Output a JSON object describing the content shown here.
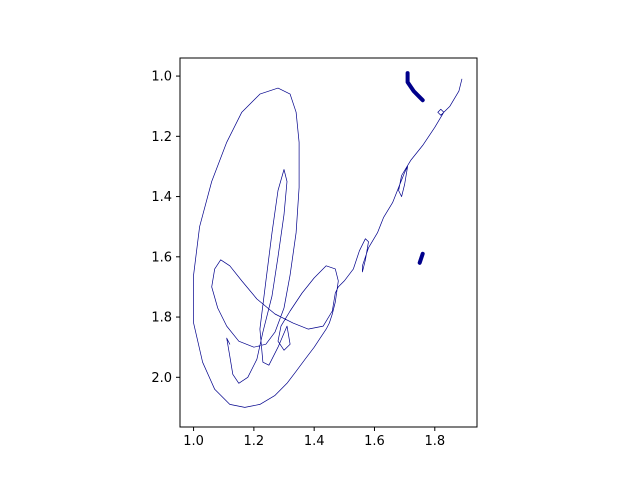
{
  "chart_data": {
    "type": "line",
    "title": "",
    "xlabel": "",
    "ylabel": "",
    "xlim": [
      0.955,
      1.94
    ],
    "ylim": [
      2.165,
      0.94
    ],
    "y_inverted": true,
    "grid": false,
    "legend": "none",
    "x_ticks": [
      1.0,
      1.2,
      1.4,
      1.6,
      1.8
    ],
    "x_tick_labels": [
      "1.0",
      "1.2",
      "1.4",
      "1.6",
      "1.8"
    ],
    "y_ticks": [
      1.0,
      1.2,
      1.4,
      1.6,
      1.8,
      2.0
    ],
    "y_tick_labels": [
      "1.0",
      "1.2",
      "1.4",
      "1.6",
      "1.8",
      "2.0"
    ],
    "line_color": "#00008b",
    "series": [
      {
        "stroke": "thin",
        "x": [
          1.12,
          1.11,
          1.12,
          1.13,
          1.15,
          1.18,
          1.21,
          1.23,
          1.26,
          1.28,
          1.3,
          1.31,
          1.3,
          1.28,
          1.26,
          1.24,
          1.22,
          1.23,
          1.25,
          1.28,
          1.31,
          1.32,
          1.3,
          1.28,
          1.29,
          1.32,
          1.36,
          1.4,
          1.44,
          1.47,
          1.48,
          1.47,
          1.46,
          1.45,
          1.44,
          1.42,
          1.4,
          1.37,
          1.34,
          1.31,
          1.27,
          1.22,
          1.17,
          1.12,
          1.07,
          1.03,
          1.0,
          1.0,
          1.02,
          1.06,
          1.11,
          1.16,
          1.22,
          1.28,
          1.32,
          1.34,
          1.35,
          1.35,
          1.34,
          1.32,
          1.3,
          1.27,
          1.24,
          1.2,
          1.15,
          1.11,
          1.08,
          1.06,
          1.07,
          1.09,
          1.12,
          1.16,
          1.21,
          1.27,
          1.33,
          1.38,
          1.43,
          1.46,
          1.47,
          1.48,
          1.5,
          1.53,
          1.55,
          1.57,
          1.58,
          1.57,
          1.56,
          1.56,
          1.58,
          1.61,
          1.63,
          1.66,
          1.68,
          1.7,
          1.71,
          1.7,
          1.69,
          1.68,
          1.69,
          1.72,
          1.76,
          1.8,
          1.83,
          1.82,
          1.81,
          1.82,
          1.85,
          1.88,
          1.89
        ],
        "y": [
          1.89,
          1.87,
          1.93,
          1.99,
          2.02,
          2.0,
          1.94,
          1.85,
          1.73,
          1.6,
          1.46,
          1.35,
          1.31,
          1.38,
          1.52,
          1.68,
          1.84,
          1.95,
          1.96,
          1.9,
          1.83,
          1.89,
          1.91,
          1.88,
          1.83,
          1.78,
          1.72,
          1.67,
          1.63,
          1.64,
          1.68,
          1.75,
          1.79,
          1.82,
          1.84,
          1.87,
          1.9,
          1.94,
          1.98,
          2.02,
          2.06,
          2.09,
          2.1,
          2.09,
          2.04,
          1.95,
          1.82,
          1.66,
          1.5,
          1.35,
          1.22,
          1.12,
          1.06,
          1.04,
          1.06,
          1.12,
          1.22,
          1.37,
          1.52,
          1.66,
          1.77,
          1.85,
          1.89,
          1.9,
          1.88,
          1.83,
          1.77,
          1.7,
          1.64,
          1.61,
          1.63,
          1.68,
          1.74,
          1.79,
          1.82,
          1.84,
          1.83,
          1.78,
          1.72,
          1.7,
          1.68,
          1.64,
          1.58,
          1.54,
          1.55,
          1.61,
          1.65,
          1.63,
          1.57,
          1.52,
          1.47,
          1.42,
          1.37,
          1.32,
          1.3,
          1.36,
          1.4,
          1.38,
          1.33,
          1.28,
          1.23,
          1.17,
          1.12,
          1.11,
          1.12,
          1.13,
          1.1,
          1.05,
          1.01
        ]
      },
      {
        "stroke": "thick",
        "x": [
          1.71,
          1.71,
          1.73,
          1.75,
          1.76
        ],
        "y": [
          0.99,
          1.02,
          1.05,
          1.07,
          1.08
        ]
      },
      {
        "stroke": "thick",
        "x": [
          1.75,
          1.76
        ],
        "y": [
          1.62,
          1.59
        ]
      }
    ]
  }
}
